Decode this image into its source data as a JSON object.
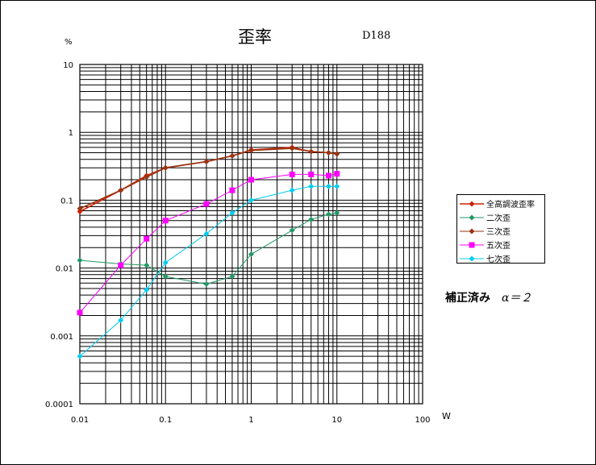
{
  "chart_data": {
    "type": "line",
    "title": "歪率",
    "subtitle": "D188",
    "ylabel": "%",
    "xlabel": "W",
    "x_scale": "log",
    "y_scale": "log",
    "xlim": [
      0.01,
      100
    ],
    "ylim": [
      0.0001,
      10
    ],
    "grid": true,
    "legend_position": "right",
    "x_ticks": [
      "0.01",
      "0.1",
      "1",
      "10",
      "100"
    ],
    "y_ticks": [
      "0.0001",
      "0.001",
      "0.01",
      "0.1",
      "1",
      "10"
    ],
    "series": [
      {
        "name": "全高調波歪率",
        "color": "#cc2200",
        "marker": "diamond",
        "x": [
          0.01,
          0.03,
          0.06,
          0.1,
          0.3,
          0.6,
          1,
          3,
          5,
          8,
          10
        ],
        "y": [
          0.068,
          0.14,
          0.23,
          0.3,
          0.37,
          0.45,
          0.55,
          0.6,
          0.52,
          0.5,
          0.48
        ]
      },
      {
        "name": "二次歪",
        "color": "#229966",
        "marker": "diamond",
        "x": [
          0.01,
          0.03,
          0.06,
          0.1,
          0.3,
          0.6,
          1,
          3,
          5,
          8,
          10
        ],
        "y": [
          0.013,
          0.0115,
          0.011,
          0.0075,
          0.0058,
          0.0075,
          0.016,
          0.036,
          0.052,
          0.062,
          0.065
        ]
      },
      {
        "name": "三次歪",
        "color": "#993311",
        "marker": "diamond",
        "x": [
          0.01,
          0.03,
          0.06,
          0.1,
          0.3,
          0.6,
          1,
          3,
          5,
          8,
          10
        ],
        "y": [
          0.075,
          0.14,
          0.22,
          0.3,
          0.37,
          0.45,
          0.54,
          0.58,
          0.52,
          0.5,
          0.48
        ]
      },
      {
        "name": "五次歪",
        "color": "#ff00ff",
        "marker": "square",
        "x": [
          0.01,
          0.03,
          0.06,
          0.1,
          0.3,
          0.6,
          1,
          3,
          5,
          8,
          10
        ],
        "y": [
          0.0022,
          0.011,
          0.027,
          0.05,
          0.088,
          0.14,
          0.2,
          0.24,
          0.24,
          0.23,
          0.245
        ]
      },
      {
        "name": "七次歪",
        "color": "#00ccee",
        "marker": "diamond",
        "x": [
          0.01,
          0.03,
          0.06,
          0.1,
          0.3,
          0.6,
          1,
          3,
          5,
          8,
          10
        ],
        "y": [
          0.0005,
          0.0017,
          0.0048,
          0.012,
          0.032,
          0.065,
          0.1,
          0.14,
          0.16,
          0.16,
          0.16
        ]
      }
    ]
  },
  "units": {
    "y": "%",
    "x": "W"
  },
  "note": {
    "text": "補正済み",
    "alpha": "α＝２"
  }
}
